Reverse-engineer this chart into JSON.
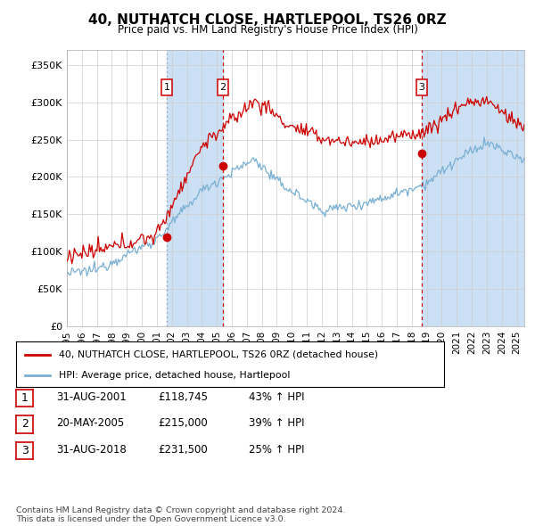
{
  "title": "40, NUTHATCH CLOSE, HARTLEPOOL, TS26 0RZ",
  "subtitle": "Price paid vs. HM Land Registry's House Price Index (HPI)",
  "ylim": [
    0,
    370000
  ],
  "yticks": [
    0,
    50000,
    100000,
    150000,
    200000,
    250000,
    300000,
    350000
  ],
  "ytick_labels": [
    "£0",
    "£50K",
    "£100K",
    "£150K",
    "£200K",
    "£250K",
    "£300K",
    "£350K"
  ],
  "xlim_start": 1995.0,
  "xlim_end": 2025.5,
  "sale_dates": [
    2001.667,
    2005.384,
    2018.667
  ],
  "sale_prices": [
    118745,
    215000,
    231500
  ],
  "sale_labels": [
    "1",
    "2",
    "3"
  ],
  "sale_pct": [
    "43% ↑ HPI",
    "39% ↑ HPI",
    "25% ↑ HPI"
  ],
  "sale_date_labels": [
    "31-AUG-2001",
    "20-MAY-2005",
    "31-AUG-2018"
  ],
  "sale_price_labels": [
    "£118,745",
    "£215,000",
    "£231,500"
  ],
  "property_line_color": "#cc0000",
  "hpi_line_color": "#7aafd4",
  "grid_color": "#cccccc",
  "shading_color": "#cce0f5",
  "vline_colors": [
    "#888888",
    "#cc0000",
    "#cc0000"
  ],
  "vline_styles": [
    "dotted",
    "dashed",
    "dashed"
  ],
  "legend_property_label": "40, NUTHATCH CLOSE, HARTLEPOOL, TS26 0RZ (detached house)",
  "legend_hpi_label": "HPI: Average price, detached house, Hartlepool",
  "footer_text": "Contains HM Land Registry data © Crown copyright and database right 2024.\nThis data is licensed under the Open Government Licence v3.0.",
  "background_color": "#ffffff"
}
